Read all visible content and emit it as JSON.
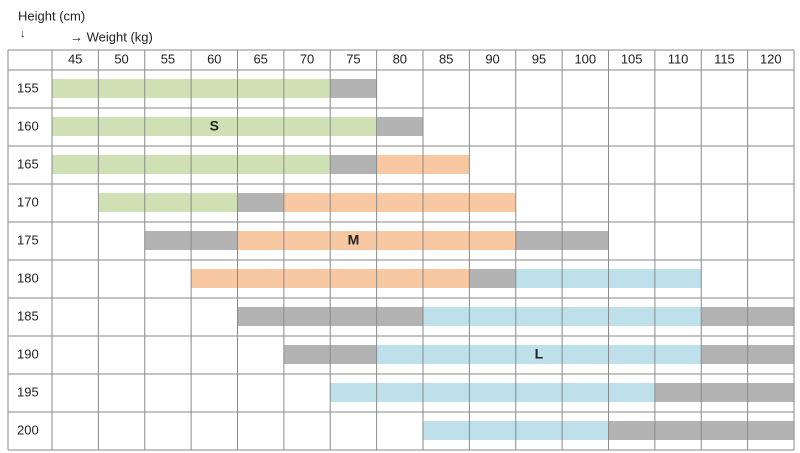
{
  "header": {
    "height_title": "Height (cm)",
    "down_arrow": "↓",
    "weight_title": "→ Weight (kg)"
  },
  "weights": [
    45,
    50,
    55,
    60,
    65,
    70,
    75,
    80,
    85,
    90,
    95,
    100,
    105,
    110,
    115,
    120
  ],
  "colors": {
    "S": "#cfe1b4",
    "M": "#f8c8a2",
    "L": "#bde0ea",
    "overlap": "#b3b3b3"
  },
  "rows": [
    {
      "height": 155,
      "segments": [
        {
          "from": 45,
          "to": 70,
          "color": "#cfe1b4"
        },
        {
          "from": 75,
          "to": 75,
          "color": "#b3b3b3"
        }
      ]
    },
    {
      "height": 160,
      "segments": [
        {
          "from": 45,
          "to": 75,
          "color": "#cfe1b4"
        },
        {
          "from": 80,
          "to": 80,
          "color": "#b3b3b3"
        }
      ],
      "label": {
        "text": "S",
        "at": 60
      }
    },
    {
      "height": 165,
      "segments": [
        {
          "from": 45,
          "to": 70,
          "color": "#cfe1b4"
        },
        {
          "from": 75,
          "to": 75,
          "color": "#b3b3b3"
        },
        {
          "from": 80,
          "to": 85,
          "color": "#f8c8a2"
        }
      ]
    },
    {
      "height": 170,
      "segments": [
        {
          "from": 50,
          "to": 60,
          "color": "#cfe1b4"
        },
        {
          "from": 65,
          "to": 65,
          "color": "#b3b3b3"
        },
        {
          "from": 70,
          "to": 90,
          "color": "#f8c8a2"
        }
      ]
    },
    {
      "height": 175,
      "segments": [
        {
          "from": 55,
          "to": 60,
          "color": "#b3b3b3"
        },
        {
          "from": 65,
          "to": 90,
          "color": "#f8c8a2"
        },
        {
          "from": 95,
          "to": 100,
          "color": "#b3b3b3"
        }
      ],
      "label": {
        "text": "M",
        "at": 75
      }
    },
    {
      "height": 180,
      "segments": [
        {
          "from": 60,
          "to": 85,
          "color": "#f8c8a2"
        },
        {
          "from": 90,
          "to": 90,
          "color": "#b3b3b3"
        },
        {
          "from": 95,
          "to": 110,
          "color": "#bde0ea"
        }
      ]
    },
    {
      "height": 185,
      "segments": [
        {
          "from": 65,
          "to": 80,
          "color": "#b3b3b3"
        },
        {
          "from": 85,
          "to": 110,
          "color": "#bde0ea"
        },
        {
          "from": 115,
          "to": 120,
          "color": "#b3b3b3"
        }
      ]
    },
    {
      "height": 190,
      "segments": [
        {
          "from": 70,
          "to": 75,
          "color": "#b3b3b3"
        },
        {
          "from": 80,
          "to": 110,
          "color": "#bde0ea"
        },
        {
          "from": 115,
          "to": 120,
          "color": "#b3b3b3"
        }
      ],
      "label": {
        "text": "L",
        "at": 95
      }
    },
    {
      "height": 195,
      "segments": [
        {
          "from": 75,
          "to": 105,
          "color": "#bde0ea"
        },
        {
          "from": 110,
          "to": 120,
          "color": "#b3b3b3"
        }
      ]
    },
    {
      "height": 200,
      "segments": [
        {
          "from": 85,
          "to": 100,
          "color": "#bde0ea"
        },
        {
          "from": 105,
          "to": 120,
          "color": "#b3b3b3"
        }
      ]
    }
  ]
}
